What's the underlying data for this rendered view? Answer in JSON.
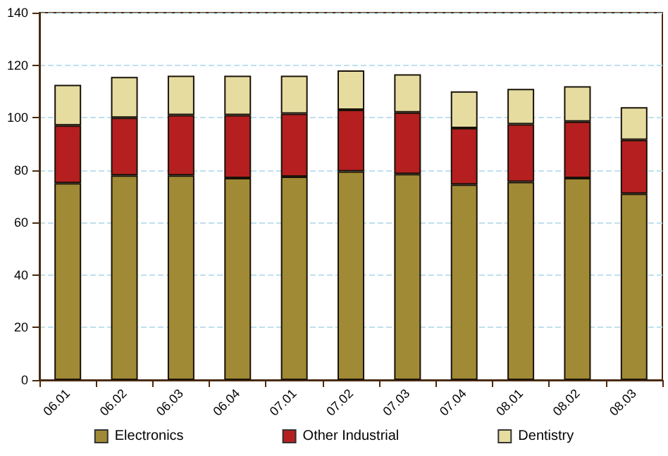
{
  "chart_data": {
    "type": "bar",
    "stacked": true,
    "categories": [
      "06.01",
      "06.02",
      "06.03",
      "06.04",
      "07.01",
      "07.02",
      "07.03",
      "07.04",
      "08.01",
      "08.02",
      "08.03"
    ],
    "series": [
      {
        "name": "Electronics",
        "color": "#a08a35",
        "values": [
          75,
          78,
          78,
          77,
          77.5,
          79.5,
          78.5,
          74.5,
          75.5,
          77,
          71
        ]
      },
      {
        "name": "Other Industrial",
        "color": "#b51f1f",
        "values": [
          22,
          22,
          23,
          24,
          24,
          23.5,
          23.5,
          21.5,
          22,
          21.5,
          20.5
        ]
      },
      {
        "name": "Dentistry",
        "color": "#e6dca0",
        "values": [
          15.5,
          15.5,
          15,
          15,
          14.5,
          15,
          14.5,
          14,
          13.5,
          13.5,
          12.5
        ]
      }
    ],
    "ylim": [
      0,
      140
    ],
    "yticks": [
      0,
      20,
      40,
      60,
      80,
      100,
      120,
      140
    ],
    "grid": "y",
    "legend": "bottom"
  }
}
